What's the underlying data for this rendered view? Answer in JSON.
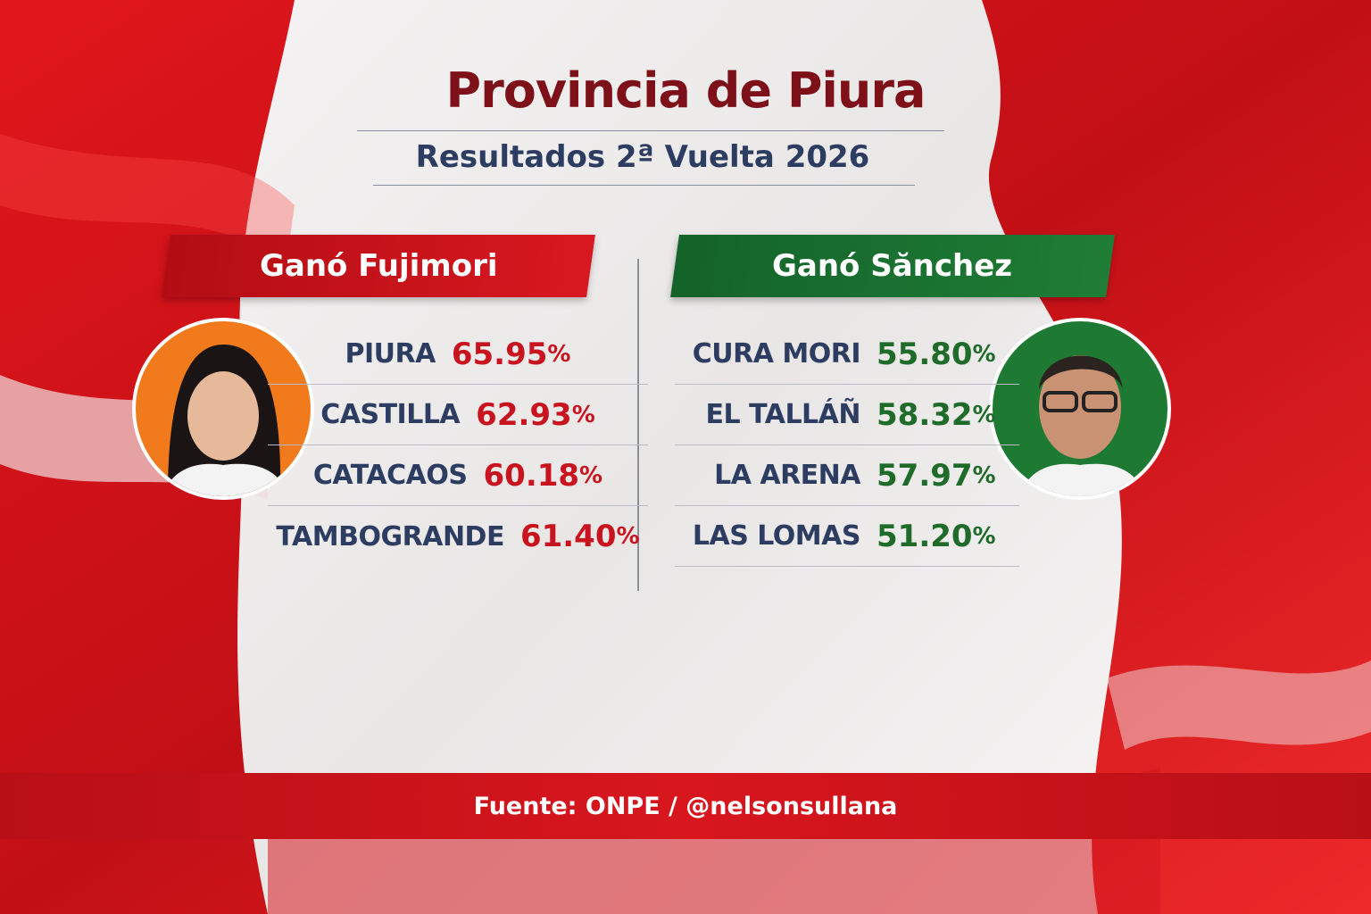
{
  "header": {
    "title": "Provincia de Piura",
    "subtitle": "Resultados 2ª Vuelta 2026"
  },
  "left": {
    "banner": "Ganó Fujimori",
    "rows": [
      {
        "district": "PIURA",
        "value": "65.95",
        "unit": "%"
      },
      {
        "district": "CASTILLA",
        "value": "62.93",
        "unit": "%"
      },
      {
        "district": "CATACAOS",
        "value": "60.18",
        "unit": "%"
      },
      {
        "district": "TAMBOGRANDE",
        "value": "61.40",
        "unit": "%"
      }
    ]
  },
  "right": {
    "banner": "Ganó Sănchez",
    "rows": [
      {
        "district": "CURA MORI",
        "value": "55.80",
        "unit": "%"
      },
      {
        "district": "EL TALLÁÑ",
        "value": "58.32",
        "unit": "%"
      },
      {
        "district": "LA ARENA",
        "value": "57.97",
        "unit": "%"
      },
      {
        "district": "LAS LOMAS",
        "value": "51.20",
        "unit": "%"
      }
    ]
  },
  "footer": {
    "source": "Fuente: ONPE / @nelsonsullana"
  }
}
